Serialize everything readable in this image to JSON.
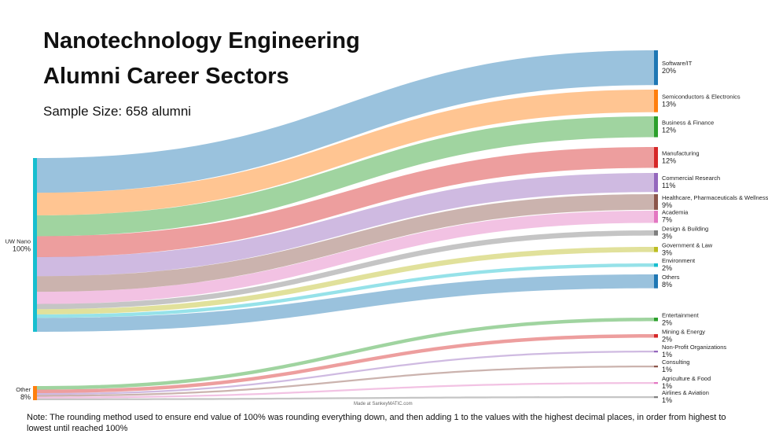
{
  "title_line1": "Nanotechnology Engineering",
  "title_line2": "Alumni Career Sectors",
  "subtitle": "Sample Size: 658 alumni",
  "credit": "Made at SankeyMATIC.com",
  "note": "Note: The rounding method used to ensure end value of 100% was rounding everything down, and then adding 1 to the values with the highest decimal places, in order from highest to lowest until reached 100%",
  "chart_data": {
    "type": "sankey",
    "unit": "%",
    "sources": [
      {
        "name": "UW Nano",
        "value": "100%",
        "color": "#17becf"
      },
      {
        "name": "Other",
        "value": "8%",
        "color": "#ff7f0e"
      }
    ],
    "flows": [
      {
        "source": "UW Nano",
        "target": "Software/IT",
        "value": 20,
        "label": "20%",
        "color": "#1f77b4"
      },
      {
        "source": "UW Nano",
        "target": "Semiconductors & Electronics",
        "value": 13,
        "label": "13%",
        "color": "#ff7f0e"
      },
      {
        "source": "UW Nano",
        "target": "Business & Finance",
        "value": 12,
        "label": "12%",
        "color": "#2ca02c"
      },
      {
        "source": "UW Nano",
        "target": "Manufacturing",
        "value": 12,
        "label": "12%",
        "color": "#d62728"
      },
      {
        "source": "UW Nano",
        "target": "Commercial Research",
        "value": 11,
        "label": "11%",
        "color": "#9467bd"
      },
      {
        "source": "UW Nano",
        "target": "Healthcare, Pharmaceuticals & Wellness",
        "value": 9,
        "label": "9%",
        "color": "#8c564b"
      },
      {
        "source": "UW Nano",
        "target": "Academia",
        "value": 7,
        "label": "7%",
        "color": "#e377c2"
      },
      {
        "source": "UW Nano",
        "target": "Design & Building",
        "value": 3,
        "label": "3%",
        "color": "#7f7f7f"
      },
      {
        "source": "UW Nano",
        "target": "Government & Law",
        "value": 3,
        "label": "3%",
        "color": "#bcbd22"
      },
      {
        "source": "UW Nano",
        "target": "Environment",
        "value": 2,
        "label": "2%",
        "color": "#17becf"
      },
      {
        "source": "UW Nano",
        "target": "Others",
        "value": 8,
        "label": "8%",
        "color": "#1f77b4"
      },
      {
        "source": "Other",
        "target": "Entertainment",
        "value": 2,
        "label": "2%",
        "color": "#2ca02c"
      },
      {
        "source": "Other",
        "target": "Mining & Energy",
        "value": 2,
        "label": "2%",
        "color": "#d62728"
      },
      {
        "source": "Other",
        "target": "Non-Profit Organizations",
        "value": 1,
        "label": "1%",
        "color": "#9467bd"
      },
      {
        "source": "Other",
        "target": "Consulting",
        "value": 1,
        "label": "1%",
        "color": "#8c564b"
      },
      {
        "source": "Other",
        "target": "Agriculture & Food",
        "value": 1,
        "label": "1%",
        "color": "#e377c2"
      },
      {
        "source": "Other",
        "target": "Airlines & Aviation",
        "value": 1,
        "label": "1%",
        "color": "#7f7f7f"
      }
    ]
  }
}
